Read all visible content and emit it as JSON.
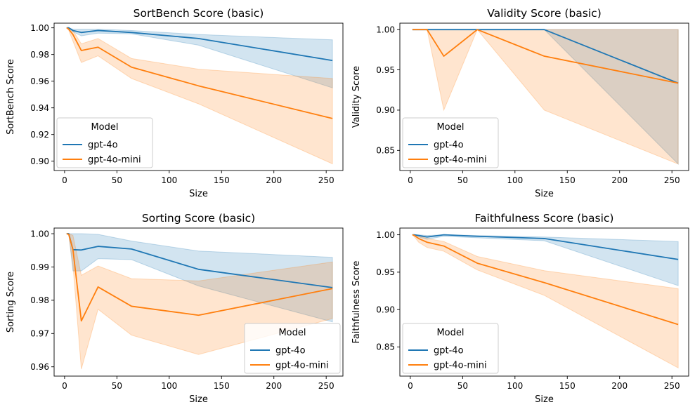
{
  "legend_title": "Model",
  "colors": {
    "gpt-4o": "#1f77b4",
    "gpt-4o-mini": "#ff7f0e"
  },
  "chart_data": [
    {
      "type": "line",
      "title": "SortBench Score (basic)",
      "xlabel": "Size",
      "ylabel": "SortBench Score",
      "xlim": [
        -10,
        266
      ],
      "ylim": [
        0.893,
        1.0035
      ],
      "xticks": [
        0,
        50,
        100,
        150,
        200,
        250
      ],
      "yticks": [
        0.9,
        0.92,
        0.94,
        0.96,
        0.98,
        1.0
      ],
      "ytick_labels": [
        "0.90",
        "0.92",
        "0.94",
        "0.96",
        "0.98",
        "1.00"
      ],
      "legend_position": "lower-left",
      "x": [
        2,
        4,
        8,
        16,
        32,
        64,
        128,
        256
      ],
      "series": [
        {
          "name": "gpt-4o",
          "values": [
            1.0,
            1.0,
            0.998,
            0.9965,
            0.998,
            0.9965,
            0.992,
            0.9755
          ],
          "lower": [
            1.0,
            1.0,
            0.997,
            0.994,
            0.996,
            0.9955,
            0.987,
            0.955
          ],
          "upper": [
            1.0,
            1.0,
            0.999,
            0.999,
            0.999,
            0.998,
            0.995,
            0.991
          ]
        },
        {
          "name": "gpt-4o-mini",
          "values": [
            1.0,
            0.999,
            0.995,
            0.983,
            0.9855,
            0.9705,
            0.9565,
            0.932
          ],
          "lower": [
            1.0,
            0.998,
            0.99,
            0.974,
            0.979,
            0.962,
            0.943,
            0.898
          ],
          "upper": [
            1.0,
            1.0,
            0.998,
            0.988,
            0.992,
            0.977,
            0.969,
            0.962
          ]
        }
      ]
    },
    {
      "type": "line",
      "title": "Validity Score (basic)",
      "xlabel": "Size",
      "ylabel": "Validity Score",
      "xlim": [
        -10,
        266
      ],
      "ylim": [
        0.825,
        1.008
      ],
      "xticks": [
        0,
        50,
        100,
        150,
        200,
        250
      ],
      "yticks": [
        0.85,
        0.9,
        0.95,
        1.0
      ],
      "ytick_labels": [
        "0.85",
        "0.90",
        "0.95",
        "1.00"
      ],
      "legend_position": "lower-left",
      "x": [
        2,
        4,
        8,
        16,
        32,
        64,
        128,
        256
      ],
      "series": [
        {
          "name": "gpt-4o",
          "values": [
            1.0,
            1.0,
            1.0,
            1.0,
            1.0,
            1.0,
            1.0,
            0.9335
          ],
          "lower": [
            1.0,
            1.0,
            1.0,
            1.0,
            1.0,
            1.0,
            1.0,
            0.833
          ],
          "upper": [
            1.0,
            1.0,
            1.0,
            1.0,
            1.0,
            1.0,
            1.0,
            1.0
          ]
        },
        {
          "name": "gpt-4o-mini",
          "values": [
            1.0,
            1.0,
            1.0,
            1.0,
            0.967,
            1.0,
            0.967,
            0.9335
          ],
          "lower": [
            1.0,
            1.0,
            1.0,
            1.0,
            0.9,
            1.0,
            0.9,
            0.833
          ],
          "upper": [
            1.0,
            1.0,
            1.0,
            1.0,
            1.0,
            1.0,
            1.0,
            1.0
          ]
        }
      ]
    },
    {
      "type": "line",
      "title": "Sorting Score (basic)",
      "xlabel": "Size",
      "ylabel": "Sorting Score",
      "xlim": [
        -10,
        266
      ],
      "ylim": [
        0.9572,
        1.0017
      ],
      "xticks": [
        0,
        50,
        100,
        150,
        200,
        250
      ],
      "yticks": [
        0.96,
        0.97,
        0.98,
        0.99,
        1.0
      ],
      "ytick_labels": [
        "0.96",
        "0.97",
        "0.98",
        "0.99",
        "1.00"
      ],
      "legend_position": "lower-right",
      "x": [
        2,
        4,
        8,
        16,
        32,
        64,
        128,
        256
      ],
      "series": [
        {
          "name": "gpt-4o",
          "values": [
            1.0,
            1.0,
            0.9952,
            0.9951,
            0.9962,
            0.9954,
            0.9893,
            0.9838
          ],
          "lower": [
            1.0,
            1.0,
            0.9888,
            0.9888,
            0.9925,
            0.9922,
            0.9843,
            0.9735
          ],
          "upper": [
            1.0,
            1.0,
            1.0,
            1.0,
            0.9998,
            0.9978,
            0.9948,
            0.9929
          ]
        },
        {
          "name": "gpt-4o-mini",
          "values": [
            1.0,
            0.9998,
            0.9952,
            0.9738,
            0.984,
            0.9782,
            0.9755,
            0.9835
          ],
          "lower": [
            1.0,
            0.9995,
            0.9905,
            0.9593,
            0.9773,
            0.9695,
            0.9637,
            0.9745
          ],
          "upper": [
            1.0,
            1.0,
            0.9995,
            0.9875,
            0.9903,
            0.9865,
            0.9858,
            0.9915
          ]
        }
      ]
    },
    {
      "type": "line",
      "title": "Faithfulness Score (basic)",
      "xlabel": "Size",
      "ylabel": "Faithfulness Score",
      "xlim": [
        -10,
        266
      ],
      "ylim": [
        0.811,
        1.009
      ],
      "xticks": [
        0,
        50,
        100,
        150,
        200,
        250
      ],
      "yticks": [
        0.85,
        0.9,
        0.95,
        1.0
      ],
      "ytick_labels": [
        "0.85",
        "0.90",
        "0.95",
        "1.00"
      ],
      "legend_position": "lower-left",
      "x": [
        2,
        4,
        8,
        16,
        32,
        64,
        128,
        256
      ],
      "series": [
        {
          "name": "gpt-4o",
          "values": [
            1.0,
            1.0,
            0.999,
            0.997,
            1.0,
            0.998,
            0.995,
            0.967
          ],
          "lower": [
            1.0,
            1.0,
            0.997,
            0.994,
            0.998,
            0.996,
            0.992,
            0.932
          ],
          "upper": [
            1.0,
            1.0,
            1.0,
            0.999,
            1.0,
            0.999,
            0.997,
            0.991
          ]
        },
        {
          "name": "gpt-4o-mini",
          "values": [
            1.0,
            0.999,
            0.995,
            0.99,
            0.985,
            0.962,
            0.936,
            0.88
          ],
          "lower": [
            1.0,
            0.997,
            0.99,
            0.983,
            0.978,
            0.953,
            0.919,
            0.822
          ],
          "upper": [
            1.0,
            1.0,
            0.999,
            0.995,
            0.991,
            0.971,
            0.952,
            0.928
          ]
        }
      ]
    }
  ]
}
